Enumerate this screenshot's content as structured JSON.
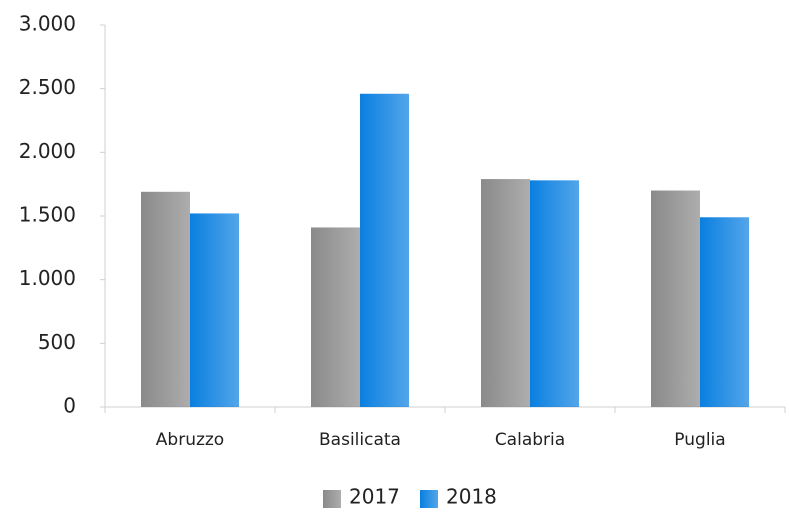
{
  "chart_data": {
    "type": "bar",
    "categories": [
      "Abruzzo",
      "Basilicata",
      "Calabria",
      "Puglia"
    ],
    "series": [
      {
        "name": "2017",
        "color": "#8a8a8a",
        "values": [
          1690,
          1410,
          1790,
          1700
        ]
      },
      {
        "name": "2018",
        "color": "#0a7fe0",
        "values": [
          1520,
          2460,
          1780,
          1490
        ]
      }
    ],
    "ylim": [
      0,
      3000
    ],
    "yticks": [
      0,
      500,
      {
        "value": 1000,
        "label": "1.000"
      },
      {
        "value": 1500,
        "label": "1.500"
      },
      {
        "value": 2000,
        "label": "2.000"
      },
      {
        "value": 2500,
        "label": "2.500"
      },
      {
        "value": 3000,
        "label": "3.000"
      }
    ],
    "legend": "bottom"
  }
}
